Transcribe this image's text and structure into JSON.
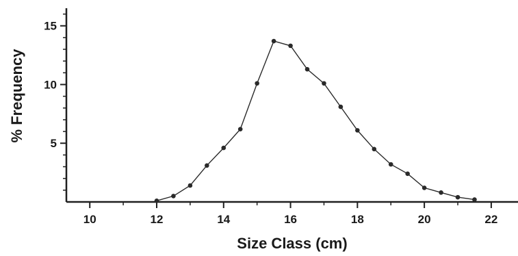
{
  "chart_data": {
    "type": "line",
    "xlabel": "Size Class (cm)",
    "ylabel": "% Frequency",
    "xlim": [
      9.3,
      22.8
    ],
    "ylim": [
      0,
      16.5
    ],
    "xticks": [
      10,
      12,
      14,
      16,
      18,
      20,
      22
    ],
    "yticks": [
      5,
      10,
      15
    ],
    "grid": false,
    "x": [
      12,
      12.5,
      13,
      13.5,
      14,
      14.5,
      15,
      15.5,
      16,
      16.5,
      17,
      17.5,
      18,
      18.5,
      19,
      19.5,
      20,
      20.5,
      21,
      21.5
    ],
    "y": [
      0.1,
      0.5,
      1.4,
      3.1,
      4.6,
      6.2,
      10.1,
      13.7,
      13.3,
      11.3,
      10.1,
      8.1,
      6.1,
      4.5,
      3.2,
      2.4,
      1.2,
      0.8,
      0.4,
      0.2
    ]
  }
}
